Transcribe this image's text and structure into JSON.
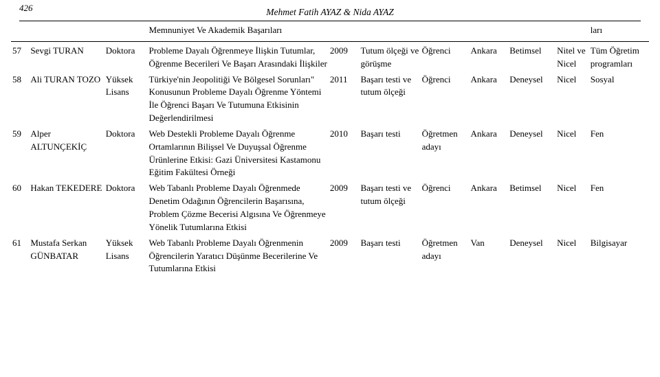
{
  "page_number": "426",
  "authors_line": "Mehmet Fatih AYAZ & Nida AYAZ",
  "header_row": {
    "title": "Memnuniyet Ve Akademik Başarıları",
    "field": "ları"
  },
  "rows": [
    {
      "idx": "57",
      "name": "Sevgi TURAN",
      "degree": "Doktora",
      "title": "Probleme Dayalı Öğrenmeye İlişkin Tutumlar, Öğrenme Becerileri Ve Başarı Arasındaki İlişkiler",
      "year": "2009",
      "dv": "Tutum ölçeği ve görüşme",
      "group": "Öğrenci",
      "univ": "Ankara",
      "method": "Betimsel",
      "type": "Nitel ve Nicel",
      "field": "Tüm Öğretim programları"
    },
    {
      "idx": "58",
      "name": "Ali TURAN TOZO",
      "degree": "Yüksek Lisans",
      "title": "Türkiye'nin Jeopolitiği Ve Bölgesel Sorunları\" Konusunun Probleme Dayalı Öğrenme Yöntemi İle Öğrenci Başarı Ve Tutumuna Etkisinin Değerlendirilmesi",
      "year": "2011",
      "dv": "Başarı testi ve tutum ölçeği",
      "group": "Öğrenci",
      "univ": "Ankara",
      "method": "Deneysel",
      "type": "Nicel",
      "field": "Sosyal"
    },
    {
      "idx": "59",
      "name": "Alper ALTUNÇEKİÇ",
      "degree": "Doktora",
      "title": "Web Destekli Probleme Dayalı Öğrenme Ortamlarının Bilişsel Ve Duyuşsal Öğrenme Ürünlerine Etkisi: Gazi Üniversitesi Kastamonu Eğitim Fakültesi Örneği",
      "year": "2010",
      "dv": "Başarı testi",
      "group": "Öğretmen adayı",
      "univ": "Ankara",
      "method": "Deneysel",
      "type": "Nicel",
      "field": "Fen"
    },
    {
      "idx": "60",
      "name": "Hakan TEKEDERE",
      "degree": "Doktora",
      "title": "Web Tabanlı Probleme Dayalı Öğrenmede Denetim Odağının Öğrencilerin Başarısına, Problem Çözme Becerisi Algısına Ve Öğrenmeye Yönelik Tutumlarına Etkisi",
      "year": "2009",
      "dv": "Başarı testi ve tutum ölçeği",
      "group": "Öğrenci",
      "univ": "Ankara",
      "method": "Betimsel",
      "type": "Nicel",
      "field": "Fen"
    },
    {
      "idx": "61",
      "name": "Mustafa Serkan GÜNBATAR",
      "degree": "Yüksek Lisans",
      "title": "Web Tabanlı Probleme Dayalı Öğrenmenin Öğrencilerin Yaratıcı Düşünme Becerilerine Ve Tutumlarına Etkisi",
      "year": "2009",
      "dv": "Başarı testi",
      "group": "Öğretmen adayı",
      "univ": "Van",
      "method": "Deneysel",
      "type": "Nicel",
      "field": "Bilgisayar"
    }
  ]
}
